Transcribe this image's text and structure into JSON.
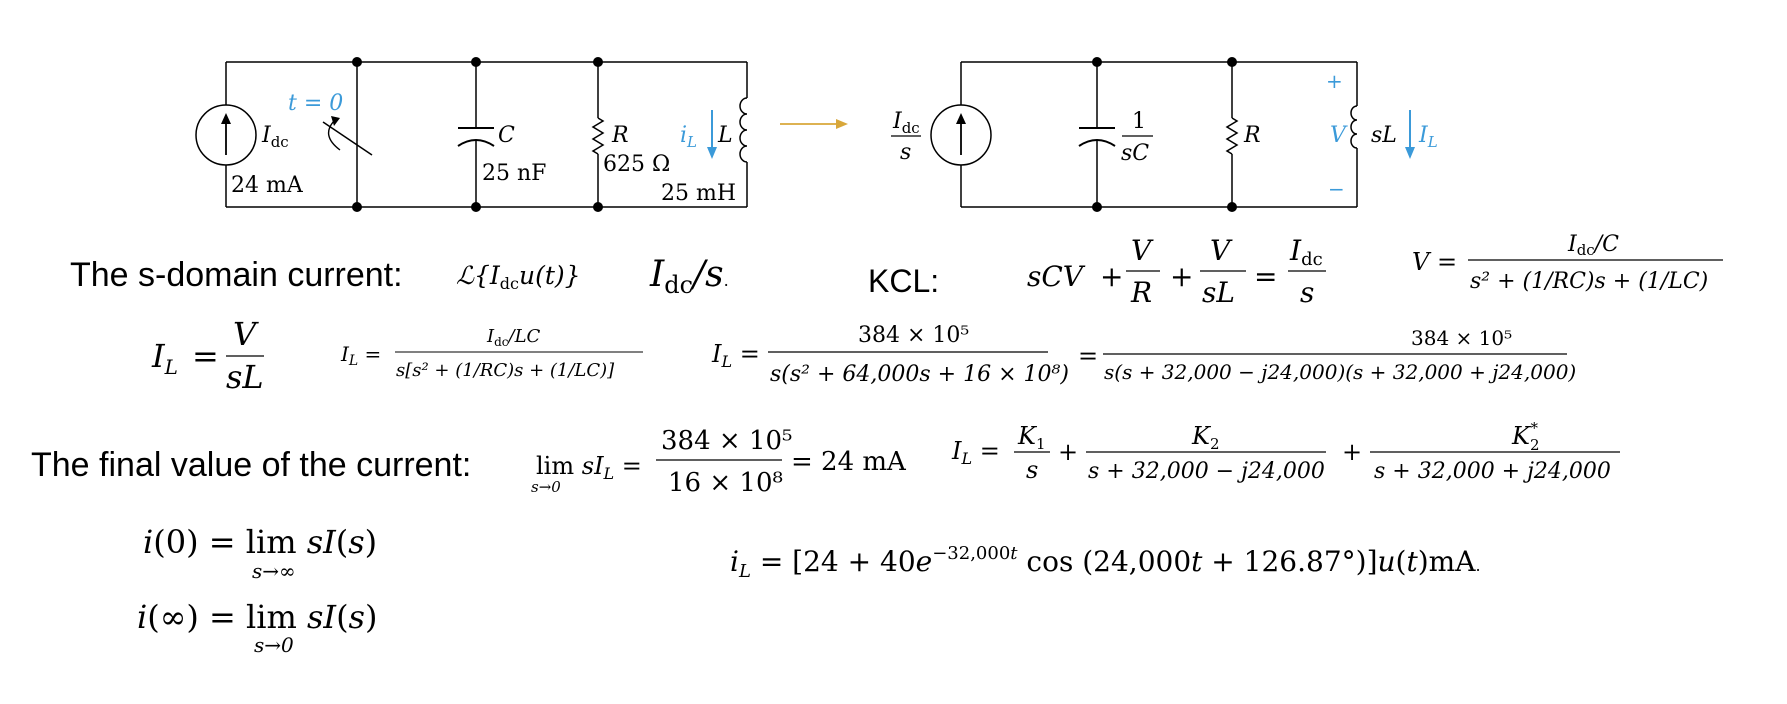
{
  "colors": {
    "wire": "#000000",
    "accent_blue": "#3b9ad9",
    "arrow_gold": "#d8a73a"
  },
  "circuit_left": {
    "switch_label": "t = 0",
    "source_label": "Idc",
    "source_value": "24 mA",
    "cap_label": "C",
    "cap_value": "25 nF",
    "res_label": "R",
    "res_value": "625 Ω",
    "ind_current": "iL",
    "ind_label": "L",
    "ind_value": "25 mH"
  },
  "circuit_right": {
    "source_num": "Idc",
    "source_den": "s",
    "cap_num": "1",
    "cap_den": "sC",
    "res_label": "R",
    "v_plus": "+",
    "v_label": "V",
    "v_minus": "−",
    "ind_label": "sL",
    "ind_current": "IL"
  },
  "labels": {
    "sdomain": "The s-domain current:",
    "kcl": "KCL:",
    "final": "The final value of the current:"
  },
  "eq": {
    "laplace": "ℒ{Idc u(t)}",
    "idc_over_s": "Idc/s.",
    "kcl_lhs": "sCV + V/R + V/sL = Idc/s",
    "v_lhs": "V =",
    "v_num": "Idc/C",
    "v_den": "s² + (1/RC)s + (1/LC)",
    "il_v_sl": "IL = V/sL",
    "il2_lhs": "IL =",
    "il2_num": "Idc/LC",
    "il2_den": "s[s² + (1/RC)s + (1/LC)]",
    "il3_lhs": "IL =",
    "il3_num": "384 × 10⁵",
    "il3_den": "s(s² + 64,000s + 16 × 10⁸)",
    "il4_eq": "=",
    "il4_num": "384 × 10⁵",
    "il4_den": "s(s + 32,000 − j24,000)(s + 32,000 + j24,000)",
    "lim_lhs": "lim sIL =",
    "lim_sub": "s→0",
    "lim_num": "384 × 10⁵",
    "lim_den": "16 × 10⁸",
    "lim_rhs": "= 24 mA",
    "pf_lhs": "IL =",
    "pf_t1_num": "K1",
    "pf_t1_den": "s",
    "pf_plus1": "+",
    "pf_t2_num": "K2",
    "pf_t2_den": "s + 32,000 − j24,000",
    "pf_plus2": "+",
    "pf_t3_num": "K2*",
    "pf_t3_den": "s + 32,000 + j24,000",
    "ivt_lhs": "i(0) = lim sI(s)",
    "ivt_sub": "s→∞",
    "fvt_lhs": "i(∞) = lim sI(s)",
    "fvt_sub": "s→0",
    "il_time": "iL = [24 + 40e−32,000t cos (24,000t + 126.87°)]u(t)mA."
  }
}
